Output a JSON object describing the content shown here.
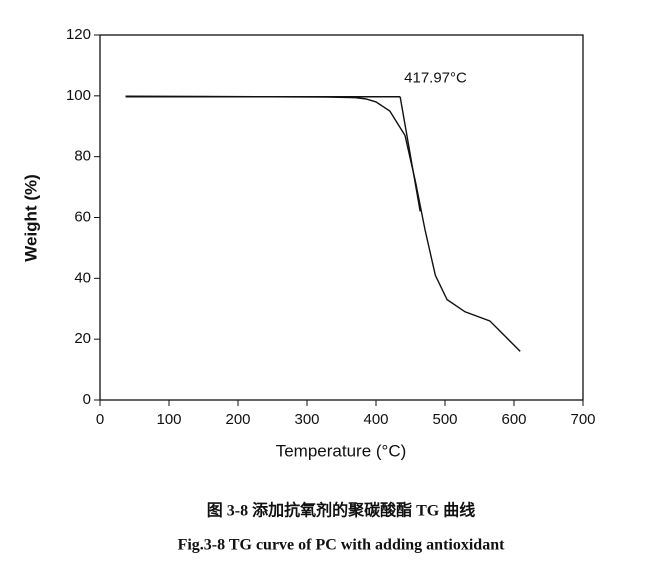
{
  "chart_data": {
    "type": "line",
    "xlabel": "Temperature (°C)",
    "ylabel": "Weight (%)",
    "xlim": [
      0,
      700
    ],
    "xticks": [
      0,
      100,
      200,
      300,
      400,
      500,
      600,
      700
    ],
    "ylim": [
      0,
      120
    ],
    "yticks": [
      0,
      20,
      40,
      60,
      80,
      100,
      120
    ],
    "series": [
      {
        "color": "#111111",
        "x": [
          37,
          150,
          250,
          330,
          370,
          385,
          400,
          420,
          442,
          457,
          471,
          486,
          503,
          529,
          565,
          587,
          609
        ],
        "values": [
          99.9,
          99.8,
          99.7,
          99.6,
          99.4,
          99,
          98,
          95,
          87,
          72,
          56,
          41,
          33,
          29,
          26,
          21,
          16
        ]
      },
      {
        "color": "#111111",
        "x": [
          37,
          435
        ],
        "values": [
          99.7,
          99.7
        ]
      },
      {
        "color": "#111111",
        "x": [
          435,
          464
        ],
        "values": [
          99.7,
          62
        ]
      }
    ],
    "annotation": {
      "x": 435,
      "y": 99.7,
      "label": "417.97°C"
    },
    "caption_cn": "图 3-8  添加抗氧剂的聚碳酸酯 TG 曲线",
    "caption_en": "Fig.3-8 TG curve of PC with adding antioxidant"
  }
}
